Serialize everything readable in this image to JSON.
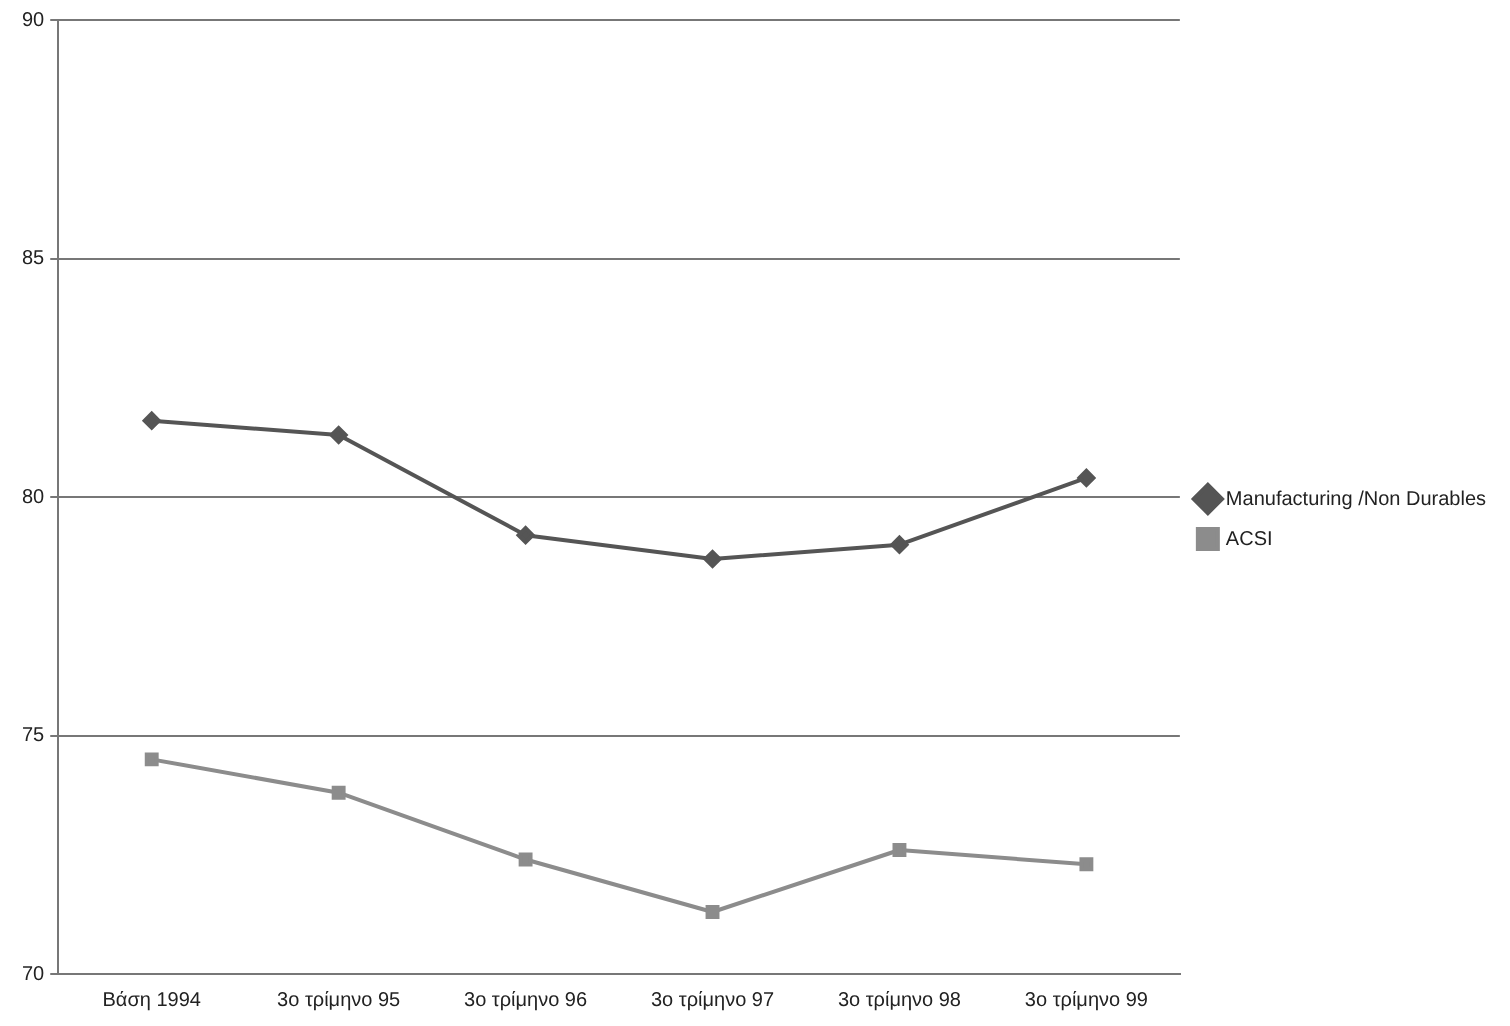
{
  "chart_data": {
    "type": "line",
    "categories": [
      "Βάση 1994",
      "3ο τρίμηνο 95",
      "3ο τρίμηνο 96",
      "3ο τρίμηνο 97",
      "3ο τρίμηνο 98",
      "3ο τρίμηνο 99"
    ],
    "series": [
      {
        "name": "Manufacturing /Non Durables",
        "color": "#555555",
        "marker": "diamond",
        "values": [
          81.6,
          81.3,
          79.2,
          78.7,
          79.0,
          80.4
        ]
      },
      {
        "name": "ACSI",
        "color": "#8c8c8c",
        "marker": "square",
        "values": [
          74.5,
          73.8,
          72.4,
          71.3,
          72.6,
          72.3
        ]
      }
    ],
    "ylim": [
      70,
      90
    ],
    "yticks": [
      70,
      75,
      80,
      85,
      90
    ],
    "grid": "y",
    "legend": "right",
    "line_style": "solid"
  }
}
